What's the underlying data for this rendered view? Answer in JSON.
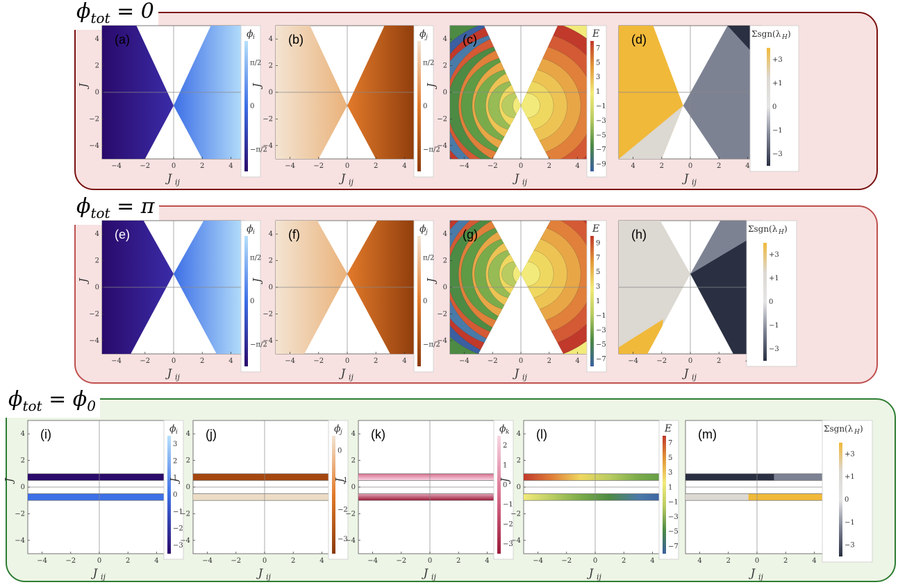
{
  "groups": [
    {
      "id": "g1",
      "title_base": "ϕ",
      "title_sub": "tot",
      "title_rest": " = 0",
      "border": "#7a1010",
      "fill": "#f7e2e1"
    },
    {
      "id": "g2",
      "title_base": "ϕ",
      "title_sub": "tot",
      "title_rest": " = π",
      "border": "#c05050",
      "fill": "#f7e2e1"
    },
    {
      "id": "g3",
      "title_base": "ϕ",
      "title_sub": "tot",
      "title_rest": " = ϕ",
      "title_sub2": "0",
      "border": "#2e7d32",
      "fill": "#edf5e6"
    }
  ],
  "axes": {
    "ylabel": "J",
    "xlabel_base": "J",
    "xlabel_sub": "ij"
  },
  "colors": {
    "phase_blue_low": "#2a0a6b",
    "phase_blue_mid": "#3d6fe6",
    "phase_blue_high": "#b8e1fb",
    "phase_orange_low": "#8b3a0b",
    "phase_orange_mid": "#e27a2a",
    "phase_orange_high": "#f3e4d2",
    "pink_low": "#9b1b3a",
    "pink_high": "#f7d7e4",
    "sgn_plus3": "#f0b93a",
    "sgn_plus1": "#dcd8d2",
    "sgn_minus1": "#7d8293",
    "sgn_minus3": "#2a3042",
    "energy_low": "#3b5fa0",
    "energy_mid": "#f2ea7a",
    "energy_high": "#c0392b"
  },
  "chart_data": [
    {
      "label": "(a)",
      "type": "heatmap",
      "quantity": "phi_i",
      "colorbar_title": "ϕ",
      "colorbar_title_sub": "i",
      "colorbar_ticks": [
        "π/2",
        "0",
        "−π/2"
      ],
      "x_ticks": [
        "−4",
        "−2",
        "0",
        "2",
        "4"
      ],
      "y_ticks": [
        "4",
        "2",
        "0",
        "−2",
        "−4"
      ],
      "xlim": [
        -5,
        5
      ],
      "ylim": [
        -5,
        5
      ],
      "region": "cone",
      "region_vertex": [
        0,
        -1
      ]
    },
    {
      "label": "(b)",
      "type": "heatmap",
      "quantity": "phi_j",
      "colorbar_title": "ϕ",
      "colorbar_title_sub": "j",
      "colorbar_ticks": [
        "π/2",
        "0",
        "−π/2"
      ],
      "x_ticks": [
        "−4",
        "−2",
        "0",
        "2",
        "4"
      ],
      "y_ticks": [
        "4",
        "2",
        "0",
        "−2",
        "−4"
      ],
      "xlim": [
        -5,
        5
      ],
      "ylim": [
        -5,
        5
      ],
      "region": "cone",
      "region_vertex": [
        0,
        -1
      ]
    },
    {
      "label": "(c)",
      "type": "heatmap",
      "quantity": "E",
      "colorbar_title": "E",
      "colorbar_title_sub": "",
      "colorbar_ticks": [
        "7",
        "5",
        "3",
        "1",
        "−1",
        "−3",
        "−5",
        "−7",
        "−9"
      ],
      "x_ticks": [
        "−4",
        "−2",
        "0",
        "2",
        "4"
      ],
      "y_ticks": [
        "4",
        "2",
        "0",
        "−2",
        "−4"
      ],
      "xlim": [
        -5,
        5
      ],
      "ylim": [
        -5,
        5
      ],
      "region": "cone",
      "region_vertex": [
        0,
        -1
      ]
    },
    {
      "label": "(d)",
      "type": "heatmap",
      "quantity": "sum_sgn",
      "colorbar_title": "Σsgn(λ",
      "colorbar_title_sub": "H",
      "colorbar_title_end": ")",
      "colorbar_ticks": [
        "+3",
        "+1",
        "0",
        "−1",
        "−3"
      ],
      "x_ticks": [
        "4",
        "2",
        "0",
        "2",
        "4"
      ],
      "y_ticks": [],
      "xlim": [
        -5,
        5
      ],
      "ylim": [
        -5,
        5
      ],
      "region": "cone",
      "region_vertex": [
        -0.5,
        -1
      ],
      "regions": [
        {
          "where": "left upper",
          "value": 3
        },
        {
          "where": "left lower",
          "value": 1
        },
        {
          "where": "right",
          "value": -1
        },
        {
          "where": "right top corner",
          "value": -3
        }
      ]
    },
    {
      "label": "(e)",
      "type": "heatmap",
      "quantity": "phi_i",
      "colorbar_title": "ϕ",
      "colorbar_title_sub": "i",
      "colorbar_ticks": [
        "π/2",
        "0",
        "−π/2"
      ],
      "x_ticks": [
        "−4",
        "−2",
        "0",
        "2",
        "4"
      ],
      "y_ticks": [
        "4",
        "2",
        "0",
        "−2",
        "−4"
      ],
      "xlim": [
        -5,
        5
      ],
      "ylim": [
        -5,
        5
      ],
      "region": "cone",
      "region_vertex": [
        0,
        1
      ]
    },
    {
      "label": "(f)",
      "type": "heatmap",
      "quantity": "phi_j",
      "colorbar_title": "ϕ",
      "colorbar_title_sub": "j",
      "colorbar_ticks": [
        "π/2",
        "0",
        "−π/2"
      ],
      "x_ticks": [
        "−4",
        "−2",
        "0",
        "2",
        "4"
      ],
      "y_ticks": [
        "4",
        "2",
        "0",
        "−2",
        "−4"
      ],
      "xlim": [
        -5,
        5
      ],
      "ylim": [
        -5,
        5
      ],
      "region": "cone",
      "region_vertex": [
        0,
        1
      ]
    },
    {
      "label": "(g)",
      "type": "heatmap",
      "quantity": "E",
      "colorbar_title": "E",
      "colorbar_title_sub": "",
      "colorbar_ticks": [
        "9",
        "7",
        "5",
        "3",
        "1",
        "−1",
        "−3",
        "−5",
        "−7"
      ],
      "x_ticks": [
        "−4",
        "−2",
        "0",
        "2",
        "4"
      ],
      "y_ticks": [
        "4",
        "2",
        "0",
        "−2",
        "−4"
      ],
      "xlim": [
        -5,
        5
      ],
      "ylim": [
        -5,
        5
      ],
      "region": "cone",
      "region_vertex": [
        0,
        1
      ]
    },
    {
      "label": "(h)",
      "type": "heatmap",
      "quantity": "sum_sgn",
      "colorbar_title": "Σsgn(λ",
      "colorbar_title_sub": "H",
      "colorbar_title_end": ")",
      "colorbar_ticks": [
        "+3",
        "+1",
        "0",
        "−1",
        "−3"
      ],
      "x_ticks": [
        "−4",
        "−2",
        "0",
        "2",
        "4"
      ],
      "y_ticks": [],
      "xlim": [
        -5,
        5
      ],
      "ylim": [
        -5,
        5
      ],
      "region": "cone",
      "region_vertex": [
        0,
        1
      ],
      "regions": [
        {
          "where": "left upper",
          "value": 1
        },
        {
          "where": "left bottom corner",
          "value": 3
        },
        {
          "where": "right upper",
          "value": -1
        },
        {
          "where": "right lower",
          "value": -3
        }
      ]
    },
    {
      "label": "(i)",
      "type": "heatmap",
      "quantity": "phi_i",
      "colorbar_title": "ϕ",
      "colorbar_title_sub": "i",
      "colorbar_ticks": [
        "3",
        "2",
        "1",
        "0",
        "−1",
        "−2",
        "−3"
      ],
      "x_ticks": [
        "−4",
        "−2",
        "0",
        "2",
        "4"
      ],
      "y_ticks": [
        "4",
        "2",
        "0",
        "−2",
        "−4"
      ],
      "xlim": [
        -5,
        5
      ],
      "ylim": [
        -5,
        5
      ],
      "region": "bands",
      "bands": [
        [
          0.5,
          1
        ],
        [
          -1,
          -0.5
        ]
      ]
    },
    {
      "label": "(j)",
      "type": "heatmap",
      "quantity": "phi_j",
      "colorbar_title": "ϕ",
      "colorbar_title_sub": "j",
      "colorbar_ticks": [
        "0",
        "−1",
        "−2",
        "−3"
      ],
      "x_ticks": [
        "−4",
        "−2",
        "0",
        "2",
        "4"
      ],
      "y_ticks": [
        "4",
        "2",
        "0",
        "−2",
        "−4"
      ],
      "xlim": [
        -5,
        5
      ],
      "ylim": [
        -5,
        5
      ],
      "region": "bands",
      "bands": [
        [
          0.5,
          1
        ],
        [
          -1,
          -0.5
        ]
      ]
    },
    {
      "label": "(k)",
      "type": "heatmap",
      "quantity": "phi_k",
      "colorbar_title": "ϕ",
      "colorbar_title_sub": "k",
      "colorbar_ticks": [
        "2",
        "1",
        "0",
        "−1",
        "−2",
        "−3"
      ],
      "x_ticks": [
        "−4",
        "−2",
        "0",
        "2",
        "4"
      ],
      "y_ticks": [
        "4",
        "2",
        "0",
        "−2",
        "−4"
      ],
      "xlim": [
        -5,
        5
      ],
      "ylim": [
        -5,
        5
      ],
      "region": "bands",
      "bands": [
        [
          0.5,
          1
        ],
        [
          -1,
          -0.5
        ]
      ]
    },
    {
      "label": "(l)",
      "type": "heatmap",
      "quantity": "E",
      "colorbar_title": "E",
      "colorbar_title_sub": "",
      "colorbar_ticks": [
        "7",
        "5",
        "3",
        "1",
        "−1",
        "−3",
        "−5",
        "−7"
      ],
      "x_ticks": [
        "−4",
        "−2",
        "0",
        "2",
        "4"
      ],
      "y_ticks": [
        "4",
        "2",
        "0",
        "−2",
        "−4"
      ],
      "xlim": [
        -5,
        5
      ],
      "ylim": [
        -5,
        5
      ],
      "region": "bands",
      "bands": [
        [
          0.5,
          1
        ],
        [
          -1,
          -0.5
        ]
      ]
    },
    {
      "label": "(m)",
      "type": "heatmap",
      "quantity": "sum_sgn",
      "colorbar_title": "Σsgn(λ",
      "colorbar_title_sub": "H",
      "colorbar_title_end": ")",
      "colorbar_ticks": [
        "+3",
        "+1",
        "0",
        "−1",
        "−3"
      ],
      "x_ticks": [
        "4",
        "2",
        "0",
        "2",
        "4"
      ],
      "y_ticks": [],
      "xlim": [
        -5,
        5
      ],
      "ylim": [
        -5,
        5
      ],
      "region": "bands",
      "bands": [
        [
          0.5,
          1
        ],
        [
          -1,
          -0.5
        ]
      ]
    }
  ]
}
